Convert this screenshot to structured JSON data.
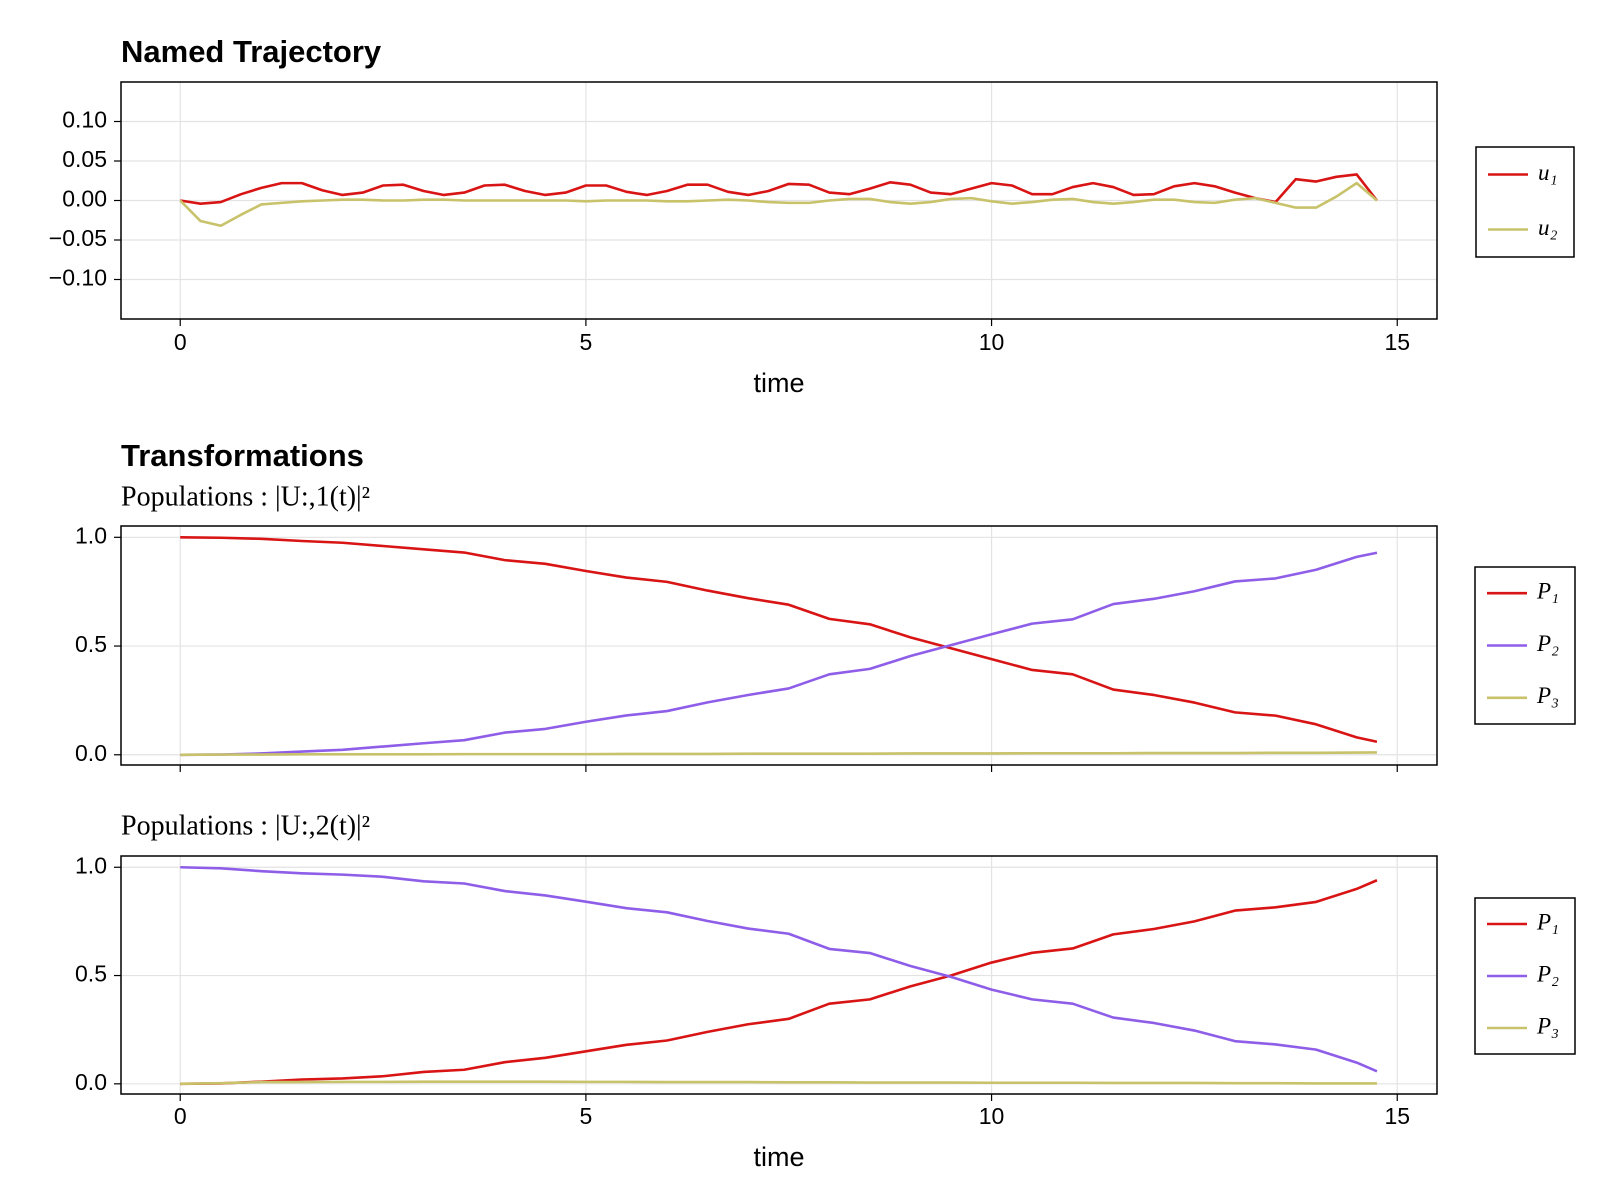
{
  "chart_data": [
    {
      "type": "line",
      "title": "Named Trajectory",
      "xlabel": "time",
      "xlim": [
        -0.73,
        15.49
      ],
      "xticks": [
        0,
        5,
        10,
        15
      ],
      "ylim": [
        -0.15,
        0.15
      ],
      "yticks": [
        {
          "value": -0.1,
          "label": "−0.10"
        },
        {
          "value": -0.05,
          "label": "−0.05"
        },
        {
          "value": 0,
          "label": "0.00"
        },
        0.05,
        {
          "value": 0.1,
          "label": "0.10"
        }
      ],
      "grid": true,
      "legend": "right",
      "x": [
        0,
        0.25,
        0.5,
        0.75,
        1,
        1.25,
        1.5,
        1.75,
        2,
        2.25,
        2.5,
        2.75,
        3,
        3.25,
        3.5,
        3.75,
        4,
        4.25,
        4.5,
        4.75,
        5,
        5.25,
        5.5,
        5.75,
        6,
        6.25,
        6.5,
        6.75,
        7,
        7.25,
        7.5,
        7.75,
        8,
        8.25,
        8.5,
        8.75,
        9,
        9.25,
        9.5,
        9.75,
        10,
        10.25,
        10.5,
        10.75,
        11,
        11.25,
        11.5,
        11.75,
        12,
        12.25,
        12.5,
        12.75,
        13,
        13.25,
        13.5,
        13.75,
        14,
        14.25,
        14.5,
        14.75
      ],
      "series": [
        {
          "name": "u₁",
          "color": "#d81414",
          "values": [
            0,
            -0.004,
            -0.002,
            0.008,
            0.016,
            0.022,
            0.022,
            0.013,
            0.007,
            0.01,
            0.019,
            0.02,
            0.012,
            0.007,
            0.01,
            0.019,
            0.02,
            0.012,
            0.007,
            0.01,
            0.019,
            0.019,
            0.011,
            0.007,
            0.012,
            0.02,
            0.02,
            0.011,
            0.007,
            0.012,
            0.021,
            0.02,
            0.01,
            0.008,
            0.015,
            0.023,
            0.02,
            0.01,
            0.008,
            0.015,
            0.022,
            0.019,
            0.008,
            0.008,
            0.017,
            0.022,
            0.017,
            0.007,
            0.008,
            0.018,
            0.022,
            0.018,
            0.01,
            0.003,
            -0.002,
            0.027,
            0.024,
            0.03,
            0.033,
            0
          ]
        },
        {
          "name": "u₂",
          "color": "#c8c26a",
          "values": [
            0,
            -0.026,
            -0.032,
            -0.018,
            -0.005,
            -0.003,
            -0.001,
            0,
            0.001,
            0.001,
            0,
            0,
            0.001,
            0.001,
            0,
            0,
            0,
            0,
            0,
            0,
            -0.001,
            0,
            0,
            0,
            -0.001,
            -0.001,
            0,
            0.001,
            0,
            -0.002,
            -0.003,
            -0.003,
            0,
            0.002,
            0.002,
            -0.002,
            -0.004,
            -0.002,
            0.002,
            0.003,
            -0.001,
            -0.004,
            -0.002,
            0.001,
            0.002,
            -0.002,
            -0.004,
            -0.002,
            0.001,
            0.001,
            -0.002,
            -0.003,
            0.001,
            0.003,
            -0.003,
            -0.009,
            -0.009,
            0.005,
            0.022,
            0
          ]
        }
      ]
    },
    {
      "type": "line",
      "title": "Transformations",
      "subtitle": "Populations :  |U:,1(t)|²",
      "xlim": [
        -0.73,
        15.49
      ],
      "xticks": [
        0,
        5,
        10,
        15
      ],
      "show_xticklabels": false,
      "ylim": [
        -0.047,
        1.052
      ],
      "yticks": [
        {
          "value": 0,
          "label": "0.0"
        },
        0.5,
        {
          "value": 1,
          "label": "1.0"
        }
      ],
      "grid": true,
      "legend": "right",
      "x": [
        0,
        0.5,
        1,
        1.5,
        2,
        2.5,
        3,
        3.5,
        4,
        4.5,
        5,
        5.5,
        6,
        6.5,
        7,
        7.5,
        8,
        8.5,
        9,
        9.5,
        10,
        10.5,
        11,
        11.5,
        12,
        12.5,
        13,
        13.5,
        14,
        14.5,
        14.75
      ],
      "series": [
        {
          "name": "P₁",
          "color": "#d81414",
          "values": [
            1.0,
            0.998,
            0.993,
            0.983,
            0.975,
            0.96,
            0.945,
            0.93,
            0.895,
            0.878,
            0.845,
            0.815,
            0.795,
            0.755,
            0.72,
            0.69,
            0.625,
            0.6,
            0.54,
            0.49,
            0.44,
            0.39,
            0.37,
            0.3,
            0.275,
            0.24,
            0.195,
            0.18,
            0.14,
            0.08,
            0.06
          ]
        },
        {
          "name": "P₂",
          "color": "#8e5ee8",
          "values": [
            0,
            0.001,
            0.006,
            0.015,
            0.023,
            0.038,
            0.053,
            0.067,
            0.102,
            0.119,
            0.152,
            0.181,
            0.201,
            0.241,
            0.275,
            0.305,
            0.37,
            0.395,
            0.454,
            0.504,
            0.554,
            0.603,
            0.623,
            0.693,
            0.717,
            0.752,
            0.797,
            0.811,
            0.851,
            0.91,
            0.929
          ]
        },
        {
          "name": "P₃",
          "color": "#c8c26a",
          "values": [
            0,
            0.001,
            0.001,
            0.002,
            0.002,
            0.002,
            0.002,
            0.003,
            0.003,
            0.003,
            0.003,
            0.004,
            0.004,
            0.004,
            0.005,
            0.005,
            0.005,
            0.005,
            0.006,
            0.006,
            0.006,
            0.007,
            0.007,
            0.007,
            0.008,
            0.008,
            0.008,
            0.009,
            0.009,
            0.01,
            0.011
          ]
        }
      ]
    },
    {
      "type": "line",
      "subtitle": "Populations :  |U:,2(t)|²",
      "xlabel": "time",
      "xlim": [
        -0.73,
        15.49
      ],
      "xticks": [
        0,
        5,
        10,
        15
      ],
      "ylim": [
        -0.047,
        1.052
      ],
      "yticks": [
        {
          "value": 0,
          "label": "0.0"
        },
        0.5,
        {
          "value": 1,
          "label": "1.0"
        }
      ],
      "grid": true,
      "legend": "right",
      "x": [
        0,
        0.5,
        1,
        1.5,
        2,
        2.5,
        3,
        3.5,
        4,
        4.5,
        5,
        5.5,
        6,
        6.5,
        7,
        7.5,
        8,
        8.5,
        9,
        9.5,
        10,
        10.5,
        11,
        11.5,
        12,
        12.5,
        13,
        13.5,
        14,
        14.5,
        14.75
      ],
      "series": [
        {
          "name": "P₁",
          "color": "#d81414",
          "values": [
            0,
            0.002,
            0.01,
            0.02,
            0.025,
            0.035,
            0.055,
            0.065,
            0.1,
            0.12,
            0.15,
            0.18,
            0.2,
            0.24,
            0.275,
            0.3,
            0.37,
            0.39,
            0.45,
            0.5,
            0.56,
            0.605,
            0.625,
            0.69,
            0.715,
            0.75,
            0.8,
            0.815,
            0.84,
            0.9,
            0.94
          ]
        },
        {
          "name": "P₂",
          "color": "#8e5ee8",
          "values": [
            1.0,
            0.995,
            0.982,
            0.972,
            0.966,
            0.956,
            0.935,
            0.925,
            0.89,
            0.87,
            0.841,
            0.811,
            0.792,
            0.752,
            0.717,
            0.693,
            0.623,
            0.604,
            0.544,
            0.494,
            0.435,
            0.39,
            0.37,
            0.306,
            0.281,
            0.246,
            0.197,
            0.182,
            0.158,
            0.098,
            0.058
          ]
        },
        {
          "name": "P₃",
          "color": "#c8c26a",
          "values": [
            0,
            0.003,
            0.008,
            0.008,
            0.009,
            0.009,
            0.01,
            0.01,
            0.01,
            0.01,
            0.009,
            0.009,
            0.008,
            0.008,
            0.008,
            0.007,
            0.007,
            0.006,
            0.006,
            0.006,
            0.005,
            0.005,
            0.005,
            0.004,
            0.004,
            0.004,
            0.003,
            0.003,
            0.002,
            0.002,
            0.002
          ]
        }
      ]
    }
  ]
}
